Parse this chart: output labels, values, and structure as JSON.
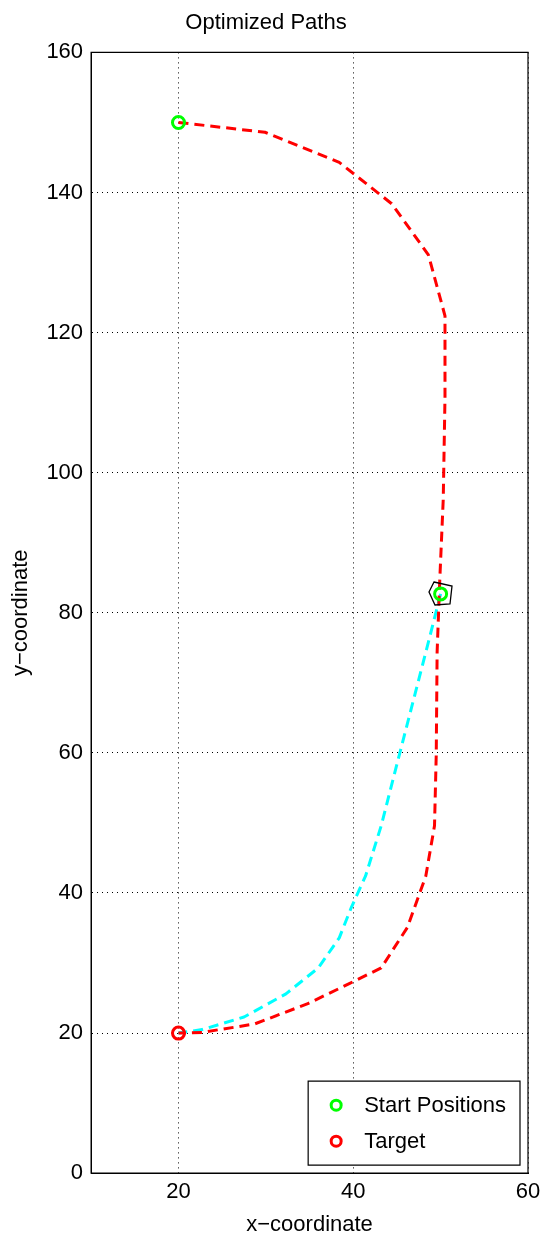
{
  "chart_data": {
    "type": "line",
    "title": "Optimized Paths",
    "xlabel": "x−coordinate",
    "ylabel": "y−coordinate",
    "xlim": [
      10,
      60
    ],
    "xticks": [
      20,
      40,
      60
    ],
    "ylim": [
      0,
      160
    ],
    "yticks": [
      0,
      20,
      40,
      60,
      80,
      100,
      120,
      140,
      160
    ],
    "grid": true,
    "legend": "bottom right",
    "line_style": "dashed",
    "marker": "none",
    "series": [
      {
        "color": "#ff0000",
        "x": [
          20,
          29.9,
          38.4,
          44.4,
          48.6,
          50.5,
          50.5,
          50.3,
          49.9,
          49.6,
          49.5,
          49.3,
          48.3,
          46.2,
          43.2,
          39.6,
          34.8,
          28.7,
          22.7,
          20
        ],
        "values": [
          150,
          148.6,
          144.3,
          138.4,
          131.1,
          122.4,
          110.8,
          96.2,
          84.6,
          74.4,
          59.8,
          49.6,
          42.4,
          35.1,
          29.3,
          27.1,
          24.2,
          21.3,
          20.1,
          20
        ]
      },
      {
        "color": "#00ffff",
        "x": [
          50,
          48.6,
          46.8,
          45,
          43.2,
          41.4,
          39.8,
          38.4,
          36,
          32.3,
          27.5,
          22.7,
          20
        ],
        "values": [
          82.7,
          75.8,
          67.1,
          58.4,
          49.6,
          42.4,
          38,
          33.6,
          29.3,
          25.6,
          22.3,
          20.5,
          20
        ]
      },
      {
        "type": "scatter",
        "name": "Start Positions",
        "color": "#00ff00",
        "marker": "circle",
        "x": [
          20,
          50
        ],
        "values": [
          150,
          82.7
        ]
      },
      {
        "type": "scatter",
        "name": "Target",
        "color": "#ff0000",
        "marker": "circle",
        "x": [
          20
        ],
        "values": [
          20
        ]
      }
    ]
  }
}
